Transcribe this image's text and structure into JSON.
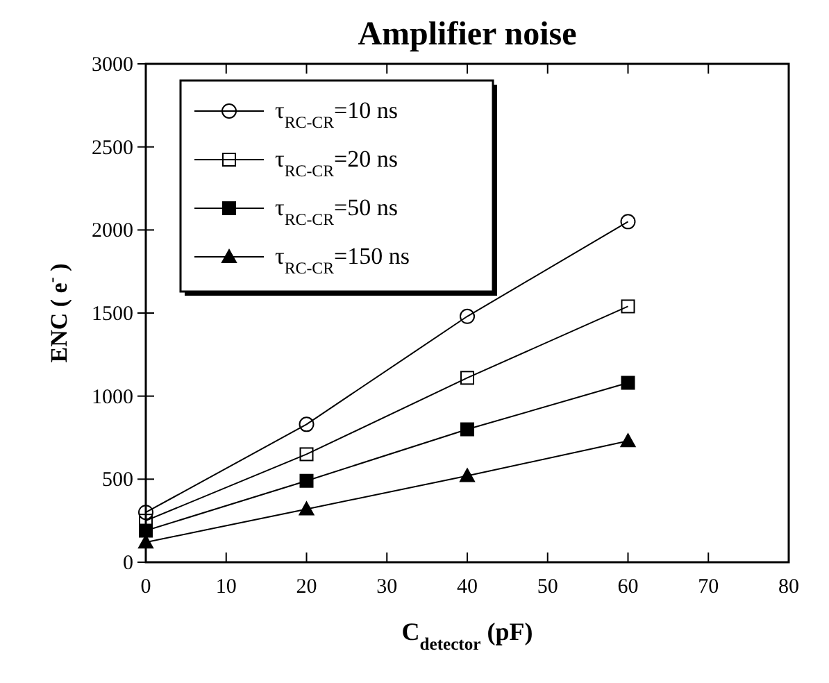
{
  "chart_data": {
    "type": "line",
    "title": "Amplifier noise",
    "xlabel": "C$_{detector}$ (pF)",
    "ylabel": "ENC ( e$^{-}$ )",
    "x": [
      0,
      20,
      40,
      60
    ],
    "series": [
      {
        "name": "τ$_{RC-CR}$=10 ns",
        "color": "#000000",
        "marker": "circle-open",
        "values": [
          300,
          830,
          1480,
          2050
        ]
      },
      {
        "name": "τ$_{RC-CR}$=20 ns",
        "color": "#000000",
        "marker": "square-open",
        "values": [
          250,
          650,
          1110,
          1540
        ]
      },
      {
        "name": "τ$_{RC-CR}$=50 ns",
        "color": "#000000",
        "marker": "square",
        "values": [
          190,
          490,
          800,
          1080
        ]
      },
      {
        "name": "τ$_{RC-CR}$=150 ns",
        "color": "#000000",
        "marker": "triangle",
        "values": [
          120,
          320,
          520,
          730
        ]
      }
    ],
    "xlim": [
      0,
      80
    ],
    "xticks": [
      0,
      10,
      20,
      30,
      40,
      50,
      60,
      70,
      80
    ],
    "ylim": [
      0,
      3000
    ],
    "yticks": [
      0,
      500,
      1000,
      1500,
      2000,
      2500,
      3000
    ],
    "legend": "top left",
    "grid": false,
    "line_style": "solid"
  }
}
